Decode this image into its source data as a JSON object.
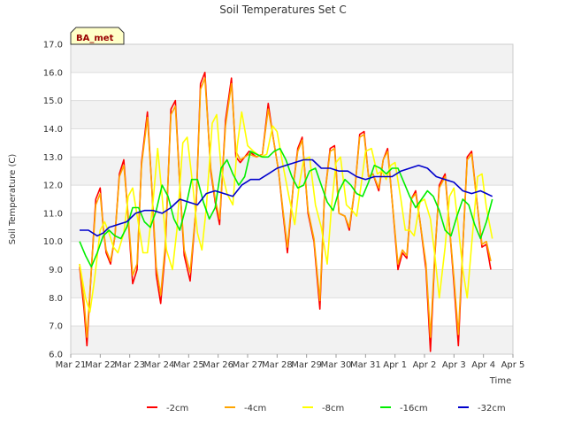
{
  "chart_data": {
    "type": "line",
    "title": "Soil Temperatures Set C",
    "xlabel": "Time",
    "ylabel": "Soil Temperature (C)",
    "station_tag": "BA_met",
    "ylim": [
      6.0,
      17.0
    ],
    "xlim": [
      0,
      15
    ],
    "y_ticks": [
      "6.0",
      "7.0",
      "8.0",
      "9.0",
      "10.0",
      "11.0",
      "12.0",
      "13.0",
      "14.0",
      "15.0",
      "16.0",
      "17.0"
    ],
    "x_ticks": [
      {
        "v": 0,
        "label": "Mar 21"
      },
      {
        "v": 1,
        "label": "Mar 22"
      },
      {
        "v": 2,
        "label": "Mar 23"
      },
      {
        "v": 3,
        "label": "Mar 24"
      },
      {
        "v": 4,
        "label": "Mar 25"
      },
      {
        "v": 5,
        "label": "Mar 26"
      },
      {
        "v": 6,
        "label": "Mar 27"
      },
      {
        "v": 7,
        "label": "Mar 28"
      },
      {
        "v": 8,
        "label": "Mar 29"
      },
      {
        "v": 9,
        "label": "Mar 30"
      },
      {
        "v": 10,
        "label": "Mar 31"
      },
      {
        "v": 11,
        "label": "Apr 1"
      },
      {
        "v": 12,
        "label": "Apr 2"
      },
      {
        "v": 13,
        "label": "Apr 3"
      },
      {
        "v": 14,
        "label": "Apr 4"
      },
      {
        "v": 15,
        "label": "Apr 5"
      }
    ],
    "grid": "horizontal bands",
    "legend_position": "bottom",
    "series": [
      {
        "name": "-2cm",
        "color": "#ff0000",
        "x": [
          0.3,
          0.45,
          0.55,
          0.7,
          0.85,
          1.0,
          1.1,
          1.2,
          1.35,
          1.5,
          1.65,
          1.8,
          1.95,
          2.1,
          2.25,
          2.4,
          2.6,
          2.75,
          2.9,
          3.05,
          3.2,
          3.4,
          3.55,
          3.7,
          3.85,
          4.05,
          4.25,
          4.4,
          4.55,
          4.75,
          4.9,
          5.05,
          5.25,
          5.45,
          5.6,
          5.75,
          5.9,
          6.05,
          6.3,
          6.5,
          6.7,
          6.85,
          7.05,
          7.2,
          7.35,
          7.55,
          7.7,
          7.85,
          8.05,
          8.25,
          8.45,
          8.6,
          8.8,
          8.95,
          9.1,
          9.3,
          9.45,
          9.65,
          9.8,
          9.95,
          10.1,
          10.25,
          10.45,
          10.6,
          10.75,
          10.9,
          11.1,
          11.25,
          11.4,
          11.55,
          11.7,
          11.85,
          12.05,
          12.2,
          12.35,
          12.5,
          12.7,
          12.85,
          13.0,
          13.15,
          13.3,
          13.45,
          13.6,
          13.8,
          13.95,
          14.1,
          14.25
        ],
        "y": [
          9.1,
          7.6,
          6.3,
          9.0,
          11.5,
          11.9,
          10.5,
          9.6,
          9.2,
          10.2,
          12.4,
          12.9,
          10.8,
          8.5,
          9.0,
          12.8,
          14.6,
          11.9,
          8.8,
          7.8,
          9.6,
          14.7,
          15.0,
          12.0,
          9.5,
          8.6,
          11.2,
          15.6,
          16.0,
          12.5,
          11.4,
          10.6,
          14.3,
          15.8,
          13.0,
          12.8,
          13.0,
          13.2,
          13.0,
          13.1,
          14.9,
          13.8,
          12.5,
          11.0,
          9.6,
          12.0,
          13.3,
          13.7,
          11.0,
          10.0,
          7.6,
          11.5,
          13.3,
          13.4,
          11.0,
          10.9,
          10.4,
          12.0,
          13.8,
          13.9,
          12.3,
          12.4,
          11.8,
          12.9,
          13.3,
          11.5,
          9.0,
          9.6,
          9.4,
          11.5,
          11.8,
          10.7,
          9.0,
          6.1,
          9.5,
          12.0,
          12.4,
          10.5,
          8.5,
          6.3,
          9.8,
          13.0,
          13.2,
          11.2,
          9.8,
          9.9,
          9.0
        ]
      },
      {
        "name": "-4cm",
        "color": "#ffa500",
        "x": [
          0.3,
          0.45,
          0.55,
          0.7,
          0.85,
          1.0,
          1.1,
          1.2,
          1.35,
          1.5,
          1.65,
          1.8,
          1.95,
          2.1,
          2.25,
          2.4,
          2.6,
          2.75,
          2.9,
          3.05,
          3.2,
          3.4,
          3.55,
          3.7,
          3.85,
          4.05,
          4.25,
          4.4,
          4.55,
          4.75,
          4.9,
          5.05,
          5.25,
          5.45,
          5.6,
          5.75,
          5.9,
          6.05,
          6.3,
          6.5,
          6.7,
          6.85,
          7.05,
          7.2,
          7.35,
          7.55,
          7.7,
          7.85,
          8.05,
          8.25,
          8.45,
          8.6,
          8.8,
          8.95,
          9.1,
          9.3,
          9.45,
          9.65,
          9.8,
          9.95,
          10.1,
          10.25,
          10.45,
          10.6,
          10.75,
          10.9,
          11.1,
          11.25,
          11.4,
          11.55,
          11.7,
          11.85,
          12.05,
          12.2,
          12.35,
          12.5,
          12.7,
          12.85,
          13.0,
          13.15,
          13.3,
          13.45,
          13.6,
          13.8,
          13.95,
          14.1,
          14.25
        ],
        "y": [
          9.2,
          7.9,
          6.6,
          9.0,
          11.3,
          11.7,
          10.5,
          9.7,
          9.3,
          10.2,
          12.3,
          12.7,
          10.9,
          8.8,
          9.2,
          12.7,
          14.4,
          11.9,
          9.1,
          8.1,
          9.8,
          14.5,
          14.8,
          12.0,
          9.7,
          8.9,
          11.2,
          15.4,
          15.8,
          12.6,
          11.5,
          10.8,
          14.1,
          15.6,
          13.2,
          12.9,
          13.0,
          13.1,
          13.0,
          13.1,
          14.7,
          13.8,
          12.5,
          11.1,
          9.8,
          12.0,
          13.2,
          13.6,
          11.1,
          10.1,
          7.9,
          11.5,
          13.2,
          13.3,
          11.0,
          10.9,
          10.5,
          12.0,
          13.7,
          13.8,
          12.3,
          12.4,
          11.9,
          12.9,
          13.2,
          11.5,
          9.2,
          9.7,
          9.5,
          11.5,
          11.7,
          10.7,
          9.2,
          6.6,
          9.6,
          11.9,
          12.3,
          10.5,
          8.7,
          6.7,
          9.8,
          12.9,
          13.1,
          11.2,
          9.9,
          10.0,
          9.3
        ]
      },
      {
        "name": "-8cm",
        "color": "#ffff00",
        "x": [
          0.3,
          0.5,
          0.65,
          0.8,
          1.0,
          1.15,
          1.3,
          1.45,
          1.6,
          1.8,
          1.95,
          2.1,
          2.3,
          2.45,
          2.6,
          2.8,
          2.95,
          3.1,
          3.25,
          3.45,
          3.6,
          3.8,
          3.95,
          4.15,
          4.3,
          4.45,
          4.6,
          4.8,
          4.95,
          5.1,
          5.3,
          5.5,
          5.65,
          5.8,
          6.0,
          6.2,
          6.45,
          6.65,
          6.85,
          7.0,
          7.2,
          7.4,
          7.6,
          7.75,
          7.9,
          8.1,
          8.3,
          8.5,
          8.7,
          8.85,
          9.0,
          9.15,
          9.35,
          9.55,
          9.7,
          9.85,
          10.0,
          10.2,
          10.4,
          10.55,
          10.7,
          10.85,
          11.0,
          11.2,
          11.35,
          11.5,
          11.65,
          11.85,
          12.0,
          12.2,
          12.35,
          12.5,
          12.7,
          12.85,
          13.0,
          13.15,
          13.3,
          13.45,
          13.6,
          13.8,
          13.95,
          14.1,
          14.3
        ],
        "y": [
          9.2,
          8.0,
          7.5,
          8.6,
          10.4,
          10.7,
          10.3,
          9.8,
          9.6,
          10.3,
          11.6,
          11.9,
          10.6,
          9.6,
          9.6,
          11.5,
          13.3,
          11.6,
          9.7,
          9.0,
          10.4,
          13.5,
          13.7,
          11.9,
          10.3,
          9.7,
          11.2,
          14.2,
          14.5,
          12.6,
          11.7,
          11.3,
          13.4,
          14.6,
          13.4,
          13.2,
          13.0,
          13.1,
          14.1,
          13.9,
          12.7,
          11.6,
          10.6,
          12.0,
          12.9,
          13.0,
          11.3,
          10.5,
          9.2,
          11.3,
          12.8,
          13.0,
          11.3,
          11.1,
          10.9,
          12.0,
          13.2,
          13.3,
          12.4,
          12.5,
          12.2,
          12.7,
          12.8,
          11.5,
          10.4,
          10.4,
          10.2,
          11.4,
          11.5,
          10.8,
          9.5,
          8.0,
          9.8,
          11.6,
          11.9,
          10.5,
          9.0,
          8.0,
          9.9,
          12.3,
          12.4,
          11.2,
          10.1
        ]
      },
      {
        "name": "-16cm",
        "color": "#00ee00",
        "x": [
          0.3,
          0.5,
          0.7,
          0.9,
          1.1,
          1.3,
          1.5,
          1.7,
          1.9,
          2.1,
          2.3,
          2.5,
          2.7,
          2.9,
          3.1,
          3.3,
          3.5,
          3.7,
          3.9,
          4.1,
          4.3,
          4.5,
          4.7,
          4.9,
          5.1,
          5.3,
          5.5,
          5.7,
          5.9,
          6.1,
          6.3,
          6.5,
          6.7,
          6.9,
          7.1,
          7.3,
          7.5,
          7.7,
          7.9,
          8.1,
          8.3,
          8.5,
          8.7,
          8.9,
          9.1,
          9.3,
          9.5,
          9.7,
          9.9,
          10.1,
          10.3,
          10.5,
          10.7,
          10.9,
          11.1,
          11.3,
          11.5,
          11.7,
          11.9,
          12.1,
          12.3,
          12.5,
          12.7,
          12.9,
          13.1,
          13.3,
          13.5,
          13.7,
          13.9,
          14.1,
          14.3
        ],
        "y": [
          10.0,
          9.5,
          9.1,
          9.6,
          10.2,
          10.4,
          10.2,
          10.1,
          10.5,
          11.2,
          11.2,
          10.7,
          10.5,
          11.1,
          12.0,
          11.6,
          10.8,
          10.4,
          11.2,
          12.2,
          12.2,
          11.4,
          10.8,
          11.2,
          12.6,
          12.9,
          12.4,
          12.0,
          12.3,
          13.2,
          13.1,
          13.0,
          13.0,
          13.2,
          13.3,
          12.9,
          12.3,
          11.9,
          12.0,
          12.5,
          12.6,
          12.0,
          11.4,
          11.1,
          11.8,
          12.2,
          12.0,
          11.7,
          11.6,
          12.1,
          12.7,
          12.6,
          12.4,
          12.6,
          12.6,
          12.1,
          11.6,
          11.2,
          11.5,
          11.8,
          11.6,
          11.1,
          10.4,
          10.2,
          10.9,
          11.5,
          11.3,
          10.6,
          10.1,
          10.7,
          11.5
        ]
      },
      {
        "name": "-32cm",
        "color": "#0000cc",
        "x": [
          0.3,
          0.6,
          0.9,
          1.1,
          1.3,
          1.6,
          1.9,
          2.2,
          2.5,
          2.8,
          3.1,
          3.4,
          3.7,
          4.0,
          4.3,
          4.6,
          4.9,
          5.2,
          5.5,
          5.8,
          6.1,
          6.4,
          6.7,
          7.0,
          7.3,
          7.6,
          7.9,
          8.2,
          8.5,
          8.8,
          9.1,
          9.4,
          9.7,
          10.0,
          10.3,
          10.6,
          10.9,
          11.2,
          11.5,
          11.8,
          12.1,
          12.4,
          12.7,
          13.0,
          13.3,
          13.6,
          13.9,
          14.1,
          14.3
        ],
        "y": [
          10.4,
          10.4,
          10.2,
          10.3,
          10.5,
          10.6,
          10.7,
          11.0,
          11.1,
          11.1,
          11.0,
          11.2,
          11.5,
          11.4,
          11.3,
          11.7,
          11.8,
          11.7,
          11.6,
          12.0,
          12.2,
          12.2,
          12.4,
          12.6,
          12.7,
          12.8,
          12.9,
          12.9,
          12.6,
          12.6,
          12.5,
          12.5,
          12.3,
          12.2,
          12.3,
          12.3,
          12.3,
          12.5,
          12.6,
          12.7,
          12.6,
          12.3,
          12.2,
          12.1,
          11.8,
          11.7,
          11.8,
          11.7,
          11.6
        ]
      }
    ]
  }
}
